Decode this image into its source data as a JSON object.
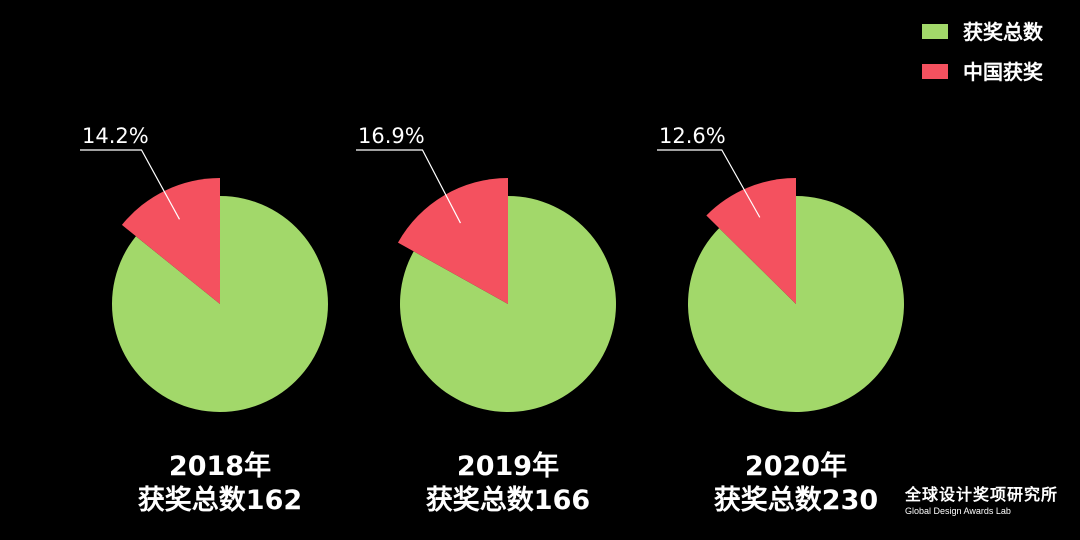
{
  "colors": {
    "background": "#000000",
    "total": "#A2D86A",
    "china": "#F4515F",
    "text": "#FFFFFF"
  },
  "legend": [
    {
      "label": "获奖总数",
      "color": "#A2D86A"
    },
    {
      "label": "中国获奖",
      "color": "#F4515F"
    }
  ],
  "chart_data": [
    {
      "type": "pie",
      "series": [
        {
          "name": "中国获奖",
          "value_percent": 14.2
        }
      ],
      "label": "14.2%",
      "caption_year": "2018年",
      "caption_total": "获奖总数162",
      "total": 162
    },
    {
      "type": "pie",
      "series": [
        {
          "name": "中国获奖",
          "value_percent": 16.9
        }
      ],
      "label": "16.9%",
      "caption_year": "2019年",
      "caption_total": "获奖总数166",
      "total": 166
    },
    {
      "type": "pie",
      "series": [
        {
          "name": "中国获奖",
          "value_percent": 12.6
        }
      ],
      "label": "12.6%",
      "caption_year": "2020年",
      "caption_total": "获奖总数230",
      "total": 230
    }
  ],
  "brand": {
    "name_cn": "全球设计奖项研究所",
    "name_en": "Global Design Awards Lab"
  }
}
